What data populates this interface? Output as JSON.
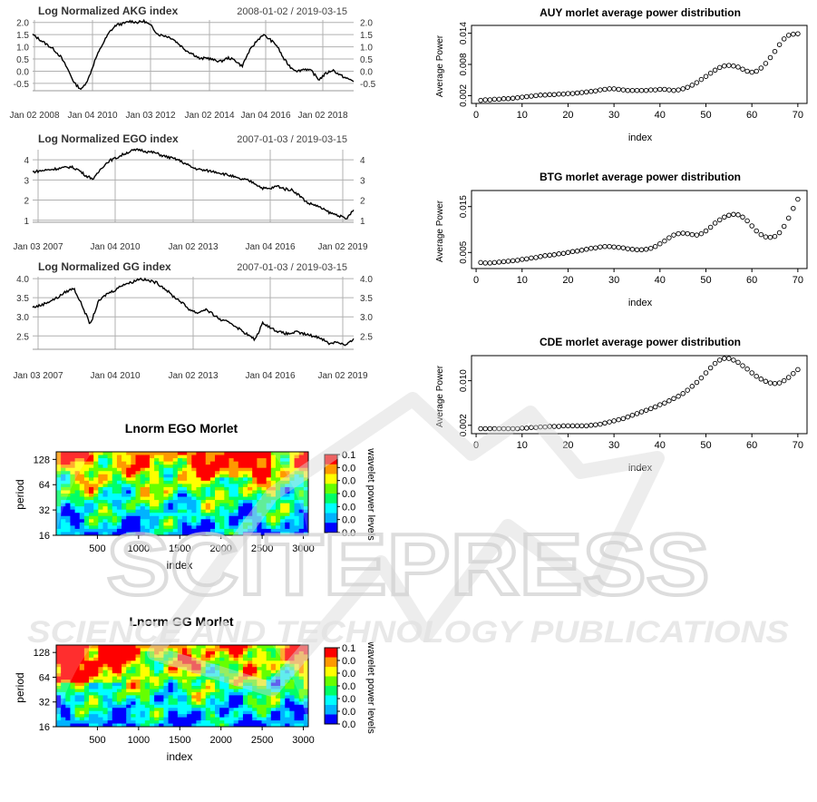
{
  "watermark": {
    "title": "SCITEPRESS",
    "subtitle": "SCIENCE AND TECHNOLOGY PUBLICATIONS"
  },
  "chart_data": [
    {
      "type": "line",
      "id": "akg",
      "title": "Log Normalized AKG index",
      "date_range": "2008-01-02 / 2019-03-15",
      "x_ticks": [
        "Jan 02 2008",
        "Jan 04 2010",
        "Jan 03 2012",
        "Jan 02 2014",
        "Jan 04 2016",
        "Jan 02 2018"
      ],
      "y_ticks": [
        "2.0",
        "1.5",
        "1.0",
        "0.5",
        "0.0",
        "-0.5"
      ],
      "ylim": [
        -0.8,
        2.1
      ],
      "series": [
        {
          "values": [
            1.5,
            1.3,
            1.1,
            0.9,
            0.6,
            0.1,
            -0.5,
            -0.75,
            -0.3,
            0.5,
            1.1,
            1.6,
            1.9,
            1.95,
            2.05,
            2.0,
            2.05,
            1.85,
            1.5,
            1.45,
            1.35,
            1.1,
            0.85,
            0.7,
            0.5,
            0.55,
            0.45,
            0.4,
            0.55,
            0.45,
            0.2,
            0.8,
            1.2,
            1.5,
            1.3,
            1.05,
            0.5,
            0.15,
            0.0,
            0.1,
            0.0,
            -0.35,
            -0.1,
            0.05,
            -0.15,
            -0.3,
            -0.4
          ]
        }
      ]
    },
    {
      "type": "line",
      "id": "ego",
      "title": "Log Normalized EGO index",
      "date_range": "2007-01-03 / 2019-03-15",
      "x_ticks": [
        "Jan 03 2007",
        "Jan 04 2010",
        "Jan 02 2013",
        "Jan 04 2016",
        "Jan 02 2019"
      ],
      "y_ticks": [
        "4",
        "3",
        "2",
        "1"
      ],
      "ylim": [
        0.9,
        4.5
      ],
      "series": [
        {
          "values": [
            3.4,
            3.45,
            3.5,
            3.55,
            3.6,
            3.65,
            3.5,
            3.2,
            3.05,
            3.6,
            3.95,
            4.1,
            4.3,
            4.45,
            4.5,
            4.4,
            4.35,
            4.2,
            4.1,
            4.0,
            3.8,
            3.6,
            3.5,
            3.45,
            3.4,
            3.3,
            3.2,
            3.05,
            3.0,
            2.85,
            2.6,
            2.55,
            2.7,
            2.55,
            2.5,
            2.2,
            1.85,
            1.75,
            1.55,
            1.35,
            1.25,
            1.05,
            1.5
          ]
        }
      ]
    },
    {
      "type": "line",
      "id": "gg",
      "title": "Log Normalized GG index",
      "date_range": "2007-01-03 / 2019-03-15",
      "x_ticks": [
        "Jan 03 2007",
        "Jan 04 2010",
        "Jan 02 2013",
        "Jan 04 2016",
        "Jan 02 2019"
      ],
      "y_ticks": [
        "4.0",
        "3.5",
        "3.0",
        "2.5"
      ],
      "ylim": [
        2.15,
        4.05
      ],
      "series": [
        {
          "values": [
            3.25,
            3.3,
            3.4,
            3.5,
            3.65,
            3.75,
            3.3,
            2.8,
            3.4,
            3.6,
            3.7,
            3.85,
            3.9,
            4.0,
            3.95,
            3.9,
            3.75,
            3.55,
            3.4,
            3.2,
            3.1,
            3.2,
            3.05,
            2.9,
            2.85,
            2.7,
            2.55,
            2.4,
            2.85,
            2.7,
            2.6,
            2.55,
            2.6,
            2.55,
            2.5,
            2.45,
            2.3,
            2.35,
            2.25,
            2.4
          ]
        }
      ]
    },
    {
      "type": "heatmap",
      "id": "ego_morlet",
      "title": "Lnorm EGO Morlet",
      "xlabel": "index",
      "ylabel": "period",
      "x_ticks": [
        "500",
        "1000",
        "1500",
        "2000",
        "2500",
        "3000"
      ],
      "y_ticks": [
        "128",
        "64",
        "32",
        "16"
      ],
      "legend_title": "wavelet power levels",
      "legend_labels": [
        "0.1",
        "0.0",
        "0.0",
        "0.0",
        "0.0",
        "0.0",
        "0.0"
      ],
      "colorscale": [
        "#0000ff",
        "#00b3ff",
        "#00ffff",
        "#00ff66",
        "#66ff00",
        "#ffff00",
        "#ff9900",
        "#ff0000"
      ]
    },
    {
      "type": "heatmap",
      "id": "gg_morlet",
      "title": "Lnorm GG Morlet",
      "xlabel": "index",
      "ylabel": "period",
      "x_ticks": [
        "500",
        "1000",
        "1500",
        "2000",
        "2500",
        "3000"
      ],
      "y_ticks": [
        "128",
        "64",
        "32",
        "16"
      ],
      "legend_title": "wavelet power levels",
      "legend_labels": [
        "0.1",
        "0.0",
        "0.0",
        "0.0",
        "0.0",
        "0.0",
        "0.0"
      ],
      "colorscale": [
        "#0000ff",
        "#00b3ff",
        "#00ffff",
        "#00ff66",
        "#66ff00",
        "#ffff00",
        "#ff9900",
        "#ff0000"
      ]
    },
    {
      "type": "scatter",
      "id": "auy",
      "title": "AUY morlet average power distribution",
      "xlabel": "index",
      "ylabel": "Average Power",
      "x_ticks": [
        "0",
        "10",
        "20",
        "30",
        "40",
        "50",
        "60",
        "70"
      ],
      "xlim": [
        -1,
        72
      ],
      "y_ticks": [
        "0.002",
        "0.008",
        "0.014"
      ],
      "ylim": [
        0.0005,
        0.0155
      ],
      "x": [
        1,
        2,
        3,
        4,
        5,
        6,
        7,
        8,
        9,
        10,
        11,
        12,
        13,
        14,
        15,
        16,
        17,
        18,
        19,
        20,
        21,
        22,
        23,
        24,
        25,
        26,
        27,
        28,
        29,
        30,
        31,
        32,
        33,
        34,
        35,
        36,
        37,
        38,
        39,
        40,
        41,
        42,
        43,
        44,
        45,
        46,
        47,
        48,
        49,
        50,
        51,
        52,
        53,
        54,
        55,
        56,
        57,
        58,
        59,
        60,
        61,
        62,
        63,
        64,
        65,
        66,
        67,
        68,
        69,
        70
      ],
      "y": [
        0.0011,
        0.0012,
        0.0012,
        0.0013,
        0.0013,
        0.0014,
        0.0014,
        0.0015,
        0.0016,
        0.0017,
        0.0018,
        0.0019,
        0.002,
        0.0021,
        0.0021,
        0.0022,
        0.0022,
        0.0023,
        0.0023,
        0.0024,
        0.0024,
        0.0025,
        0.0026,
        0.0027,
        0.0028,
        0.0029,
        0.0031,
        0.0032,
        0.0033,
        0.0033,
        0.0032,
        0.0031,
        0.003,
        0.003,
        0.003,
        0.003,
        0.003,
        0.0031,
        0.0031,
        0.0032,
        0.0032,
        0.0031,
        0.003,
        0.0031,
        0.0033,
        0.0036,
        0.004,
        0.0045,
        0.0051,
        0.0057,
        0.0063,
        0.0069,
        0.0074,
        0.0077,
        0.0078,
        0.0077,
        0.0075,
        0.0071,
        0.0067,
        0.0065,
        0.0067,
        0.0073,
        0.0082,
        0.0093,
        0.0105,
        0.0118,
        0.0129,
        0.0136,
        0.0138,
        0.0139
      ]
    },
    {
      "type": "scatter",
      "id": "btg",
      "title": "BTG morlet average power distribution",
      "xlabel": "index",
      "ylabel": "Average Power",
      "x_ticks": [
        "0",
        "10",
        "20",
        "30",
        "40",
        "50",
        "60",
        "70"
      ],
      "xlim": [
        -1,
        72
      ],
      "y_ticks": [
        "0.005",
        "0.015"
      ],
      "ylim": [
        0.0015,
        0.0185
      ],
      "x": [
        1,
        2,
        3,
        4,
        5,
        6,
        7,
        8,
        9,
        10,
        11,
        12,
        13,
        14,
        15,
        16,
        17,
        18,
        19,
        20,
        21,
        22,
        23,
        24,
        25,
        26,
        27,
        28,
        29,
        30,
        31,
        32,
        33,
        34,
        35,
        36,
        37,
        38,
        39,
        40,
        41,
        42,
        43,
        44,
        45,
        46,
        47,
        48,
        49,
        50,
        51,
        52,
        53,
        54,
        55,
        56,
        57,
        58,
        59,
        60,
        61,
        62,
        63,
        64,
        65,
        66,
        67,
        68,
        69,
        70
      ],
      "y": [
        0.0028,
        0.0027,
        0.0027,
        0.0028,
        0.0029,
        0.003,
        0.0031,
        0.0032,
        0.0033,
        0.0035,
        0.0036,
        0.0038,
        0.0039,
        0.0041,
        0.0043,
        0.0044,
        0.0045,
        0.0047,
        0.0048,
        0.005,
        0.0052,
        0.0053,
        0.0055,
        0.0057,
        0.0059,
        0.006,
        0.0062,
        0.0063,
        0.0063,
        0.0062,
        0.0061,
        0.006,
        0.0058,
        0.0057,
        0.0056,
        0.0056,
        0.0057,
        0.0059,
        0.0063,
        0.0069,
        0.0075,
        0.0082,
        0.0088,
        0.0091,
        0.0092,
        0.0091,
        0.0089,
        0.0088,
        0.0091,
        0.0097,
        0.0105,
        0.0114,
        0.0121,
        0.0127,
        0.0131,
        0.0133,
        0.0132,
        0.0127,
        0.0119,
        0.0108,
        0.0097,
        0.0089,
        0.0084,
        0.0083,
        0.0085,
        0.0093,
        0.0107,
        0.0125,
        0.0146,
        0.0166
      ]
    },
    {
      "type": "scatter",
      "id": "cde",
      "title": "CDE morlet average power distribution",
      "xlabel": "index",
      "ylabel": "Average Power",
      "x_ticks": [
        "0",
        "10",
        "20",
        "30",
        "40",
        "50",
        "60",
        "70"
      ],
      "xlim": [
        -1,
        72
      ],
      "y_ticks": [
        "0.002",
        "0.010"
      ],
      "ylim": [
        0.0005,
        0.0145
      ],
      "x": [
        1,
        2,
        3,
        4,
        5,
        6,
        7,
        8,
        9,
        10,
        11,
        12,
        13,
        14,
        15,
        16,
        17,
        18,
        19,
        20,
        21,
        22,
        23,
        24,
        25,
        26,
        27,
        28,
        29,
        30,
        31,
        32,
        33,
        34,
        35,
        36,
        37,
        38,
        39,
        40,
        41,
        42,
        43,
        44,
        45,
        46,
        47,
        48,
        49,
        50,
        51,
        52,
        53,
        54,
        55,
        56,
        57,
        58,
        59,
        60,
        61,
        62,
        63,
        64,
        65,
        66,
        67,
        68,
        69,
        70
      ],
      "y": [
        0.0014,
        0.0014,
        0.0014,
        0.0014,
        0.0014,
        0.0014,
        0.0014,
        0.0014,
        0.0014,
        0.0015,
        0.0015,
        0.0016,
        0.0016,
        0.0017,
        0.0017,
        0.0018,
        0.0018,
        0.0018,
        0.0019,
        0.0019,
        0.0019,
        0.0019,
        0.0019,
        0.0019,
        0.002,
        0.0021,
        0.0022,
        0.0024,
        0.0026,
        0.0028,
        0.003,
        0.0032,
        0.0035,
        0.0038,
        0.0041,
        0.0044,
        0.0047,
        0.005,
        0.0053,
        0.0057,
        0.006,
        0.0064,
        0.0068,
        0.0072,
        0.0077,
        0.0083,
        0.009,
        0.0097,
        0.0105,
        0.0114,
        0.0123,
        0.0131,
        0.0137,
        0.014,
        0.014,
        0.0137,
        0.0133,
        0.0127,
        0.0121,
        0.0114,
        0.0108,
        0.0103,
        0.0099,
        0.0096,
        0.0095,
        0.0096,
        0.01,
        0.0106,
        0.0113,
        0.012
      ]
    }
  ]
}
